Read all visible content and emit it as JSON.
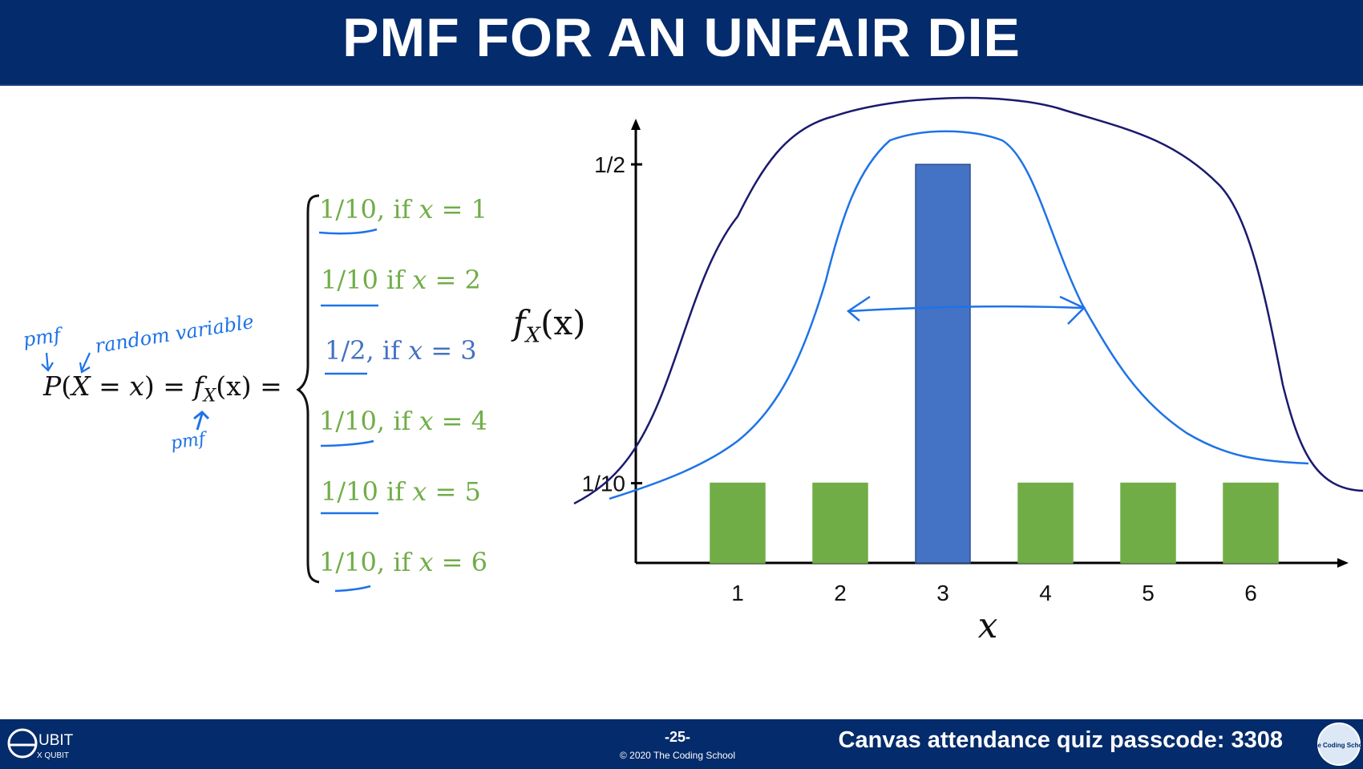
{
  "header": {
    "title": "PMF FOR AN UNFAIR DIE"
  },
  "formula": {
    "lhs": {
      "p": "P",
      "open": "(",
      "X": "X",
      "eq1": " = ",
      "x": "x",
      "close": ")",
      "eq2": " = ",
      "f": "f",
      "sub": "X",
      "arg": "(x)",
      "eq3": " ="
    },
    "cases": [
      {
        "prob": "1/10,",
        "cond": "if",
        "x": "x",
        "rel": "= 1"
      },
      {
        "prob": "1/10",
        "cond": "if",
        "x": "x",
        "rel": "= 2"
      },
      {
        "prob": "1/2,",
        "cond": "if",
        "x": "x",
        "rel": "= 3"
      },
      {
        "prob": "1/10,",
        "cond": "if",
        "x": "x",
        "rel": "= 4"
      },
      {
        "prob": "1/10",
        "cond": "if",
        "x": "x",
        "rel": "= 5"
      },
      {
        "prob": "1/10,",
        "cond": "if",
        "x": "x",
        "rel": "= 6"
      }
    ],
    "colors": {
      "green": "#70ad47",
      "blue": "#4472c4"
    }
  },
  "annotations": {
    "pmf_note": "pmf",
    "random_variable_note": "random variable",
    "pmf_note_2": "pmf"
  },
  "chart_data": {
    "type": "bar",
    "categories": [
      "1",
      "2",
      "3",
      "4",
      "5",
      "6"
    ],
    "values": [
      0.1,
      0.1,
      0.5,
      0.1,
      0.1,
      0.1
    ],
    "colors": [
      "#70ad47",
      "#70ad47",
      "#4472c4",
      "#70ad47",
      "#70ad47",
      "#70ad47"
    ],
    "ytick_labels": [
      "1/10",
      "1/2"
    ],
    "yticks": [
      0.1,
      0.5
    ],
    "ylim": [
      0,
      0.5
    ],
    "xlabel": "x",
    "ylabel": {
      "f": "f",
      "sub": "X",
      "arg": "(x)"
    },
    "grid": false
  },
  "footer": {
    "page": "-25-",
    "copyright": "© 2020 The Coding School",
    "passcode": "Canvas attendance quiz passcode: 3308",
    "logo_text": "UBIT",
    "logo_sub": "X QUBIT",
    "right_logo_text": "The Coding School"
  }
}
